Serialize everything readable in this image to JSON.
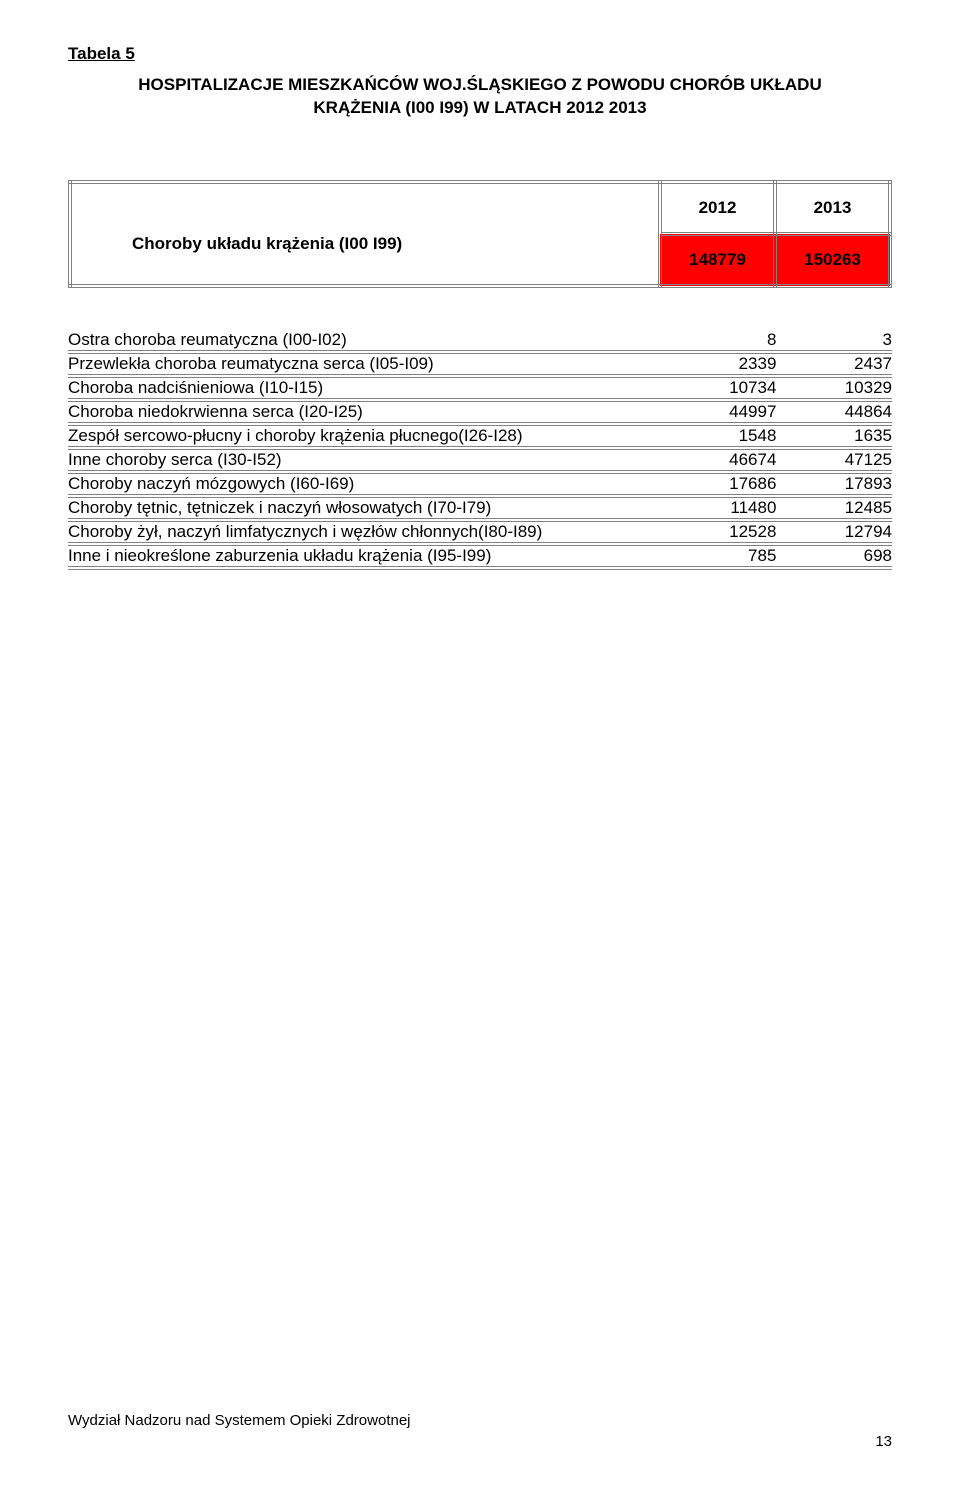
{
  "page": {
    "tabela_label": "Tabela 5",
    "heading_line1": "HOSPITALIZACJE MIESZKAŃCÓW WOJ.ŚLĄSKIEGO Z POWODU CHORÓB UKŁADU",
    "heading_line2": "KRĄŻENIA (I00 I99) W LATACH 2012 2013",
    "footer_text": "Wydział Nadzoru nad Systemem Opieki Zdrowotnej",
    "footer_page": "13"
  },
  "header_table": {
    "row_label": "Choroby układu krążenia (I00 I99)",
    "years": [
      "2012",
      "2013"
    ],
    "totals": [
      "148779",
      "150263"
    ],
    "colors": {
      "red_bg": "#ff0000",
      "border": "#808080"
    }
  },
  "data_rows": [
    {
      "label": "Ostra choroba reumatyczna (I00-I02)",
      "v1": "8",
      "v2": "3"
    },
    {
      "label": "Przewlekła choroba reumatyczna serca (I05-I09)",
      "v1": "2339",
      "v2": "2437"
    },
    {
      "label": "Choroba nadciśnieniowa (I10-I15)",
      "v1": "10734",
      "v2": "10329"
    },
    {
      "label": "Choroba niedokrwienna serca (I20-I25)",
      "v1": "44997",
      "v2": "44864"
    },
    {
      "label": "Zespół sercowo-płucny i choroby krążenia płucnego(I26-I28)",
      "v1": "1548",
      "v2": "1635"
    },
    {
      "label": "Inne choroby serca (I30-I52)",
      "v1": "46674",
      "v2": "47125"
    },
    {
      "label": "Choroby naczyń mózgowych (I60-I69)",
      "v1": "17686",
      "v2": "17893"
    },
    {
      "label": "Choroby tętnic, tętniczek i naczyń włosowatych (I70-I79)",
      "v1": "11480",
      "v2": "12485"
    },
    {
      "label": "Choroby żył, naczyń limfatycznych i węzłów chłonnych(I80-I89)",
      "v1": "12528",
      "v2": "12794"
    },
    {
      "label": "Inne i nieokreślone zaburzenia układu krążenia (I95-I99)",
      "v1": "785",
      "v2": "698"
    }
  ],
  "style": {
    "font_family": "Arial",
    "body_bg": "#ffffff",
    "text_color": "#000000",
    "label_fontsize": 17,
    "cell_fontsize": 17,
    "col_widths": {
      "label": 590,
      "value": 115
    }
  }
}
